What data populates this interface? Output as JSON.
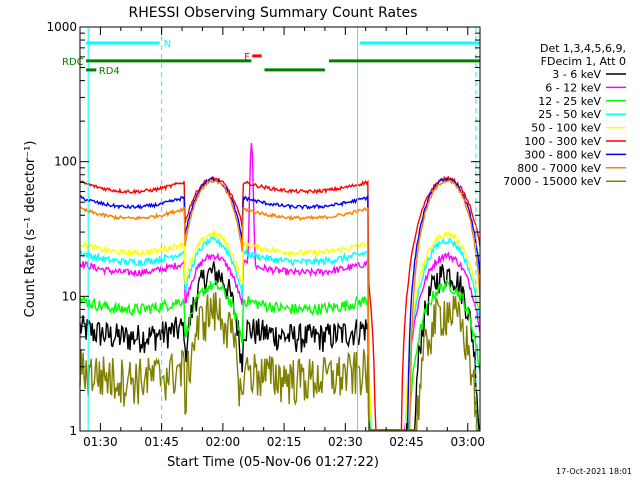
{
  "chart_data": {
    "type": "line",
    "title": "RHESSI Observing Summary Count Rates",
    "xlabel": "Start Time (05-Nov-06 01:27:22)",
    "ylabel": "Count Rate (s⁻¹ detector⁻¹)",
    "x_range_minutes": [
      -2,
      96
    ],
    "x_tick_minutes": [
      3,
      18,
      33,
      48,
      63,
      78,
      93
    ],
    "x_tick_labels": [
      "01:30",
      "01:45",
      "02:00",
      "02:15",
      "02:30",
      "02:45",
      "03:00"
    ],
    "y_scale": "log",
    "ylim": [
      1,
      1000
    ],
    "y_tick_values": [
      1,
      10,
      100,
      1000
    ],
    "y_tick_labels": [
      "1",
      "10",
      "100",
      "1000"
    ],
    "legend": {
      "placement": "right",
      "header": [
        "Det 1,3,4,5,6,9,",
        "FDecim 1, Att 0"
      ]
    },
    "series": [
      {
        "name": "3 - 6 keV",
        "color": "#000000",
        "night": 5,
        "peak": 15,
        "fluct": 0.25
      },
      {
        "name": "6 - 12 keV",
        "color": "#ff00ff",
        "night": 15,
        "peak": 20,
        "fluct": 0.06,
        "flare_peak": 140
      },
      {
        "name": "12 - 25 keV",
        "color": "#00ff00",
        "night": 8,
        "peak": 12,
        "fluct": 0.1
      },
      {
        "name": "25 - 50 keV",
        "color": "#00ffff",
        "night": 18,
        "peak": 26,
        "fluct": 0.06
      },
      {
        "name": "50 - 100 keV",
        "color": "#ffff00",
        "night": 21,
        "peak": 29,
        "fluct": 0.05
      },
      {
        "name": "100 - 300 keV",
        "color": "#ff0000",
        "night": 60,
        "peak": 75,
        "fluct": 0.03
      },
      {
        "name": "300 - 800 keV",
        "color": "#0000ff",
        "night": 46,
        "peak": 74,
        "fluct": 0.03
      },
      {
        "name": "800 - 7000 keV",
        "color": "#ff8000",
        "night": 38,
        "peak": 72,
        "fluct": 0.03
      },
      {
        "name": "7000 - 15000 keV",
        "color": "#808000",
        "night": 2.5,
        "peak": 8,
        "fluct": 0.4
      }
    ],
    "night_intervals_minutes": [
      [
        -2,
        23.5
      ],
      [
        37.8,
        68.5
      ]
    ],
    "flare_minute": 40,
    "annotations": {
      "N": {
        "label": "N",
        "color": "#00ffff",
        "intervals": [
          [
            -0.5,
            17.5
          ],
          [
            66.5,
            96
          ]
        ],
        "level": 760
      },
      "F": {
        "label": "F",
        "color": "#ff0000",
        "intervals": [
          [
            40.2,
            42.5
          ]
        ],
        "level": 610
      },
      "RDC": {
        "label": "RDC",
        "color": "#008000",
        "intervals": [
          [
            -0.5,
            40
          ],
          [
            43.2,
            58
          ],
          [
            59,
            96
          ]
        ],
        "level": 560,
        "alt_level": 480
      },
      "RD4": {
        "label": "RD4",
        "color": "#008000",
        "intervals": [
          [
            -0.5,
            2
          ]
        ],
        "level": 480
      }
    },
    "vertical_markers": [
      {
        "minute": 0,
        "color": "#00ffff",
        "style": "solid"
      },
      {
        "minute": 18,
        "color": "#00ffff",
        "style": "dashed"
      },
      {
        "minute": 66,
        "color": "#00ffff",
        "style": "solid"
      },
      {
        "minute": 95,
        "color": "#00ffff",
        "style": "dashed"
      }
    ],
    "grid": false
  },
  "footer": {
    "date_stamp": "17-Oct-2021 18:01"
  }
}
